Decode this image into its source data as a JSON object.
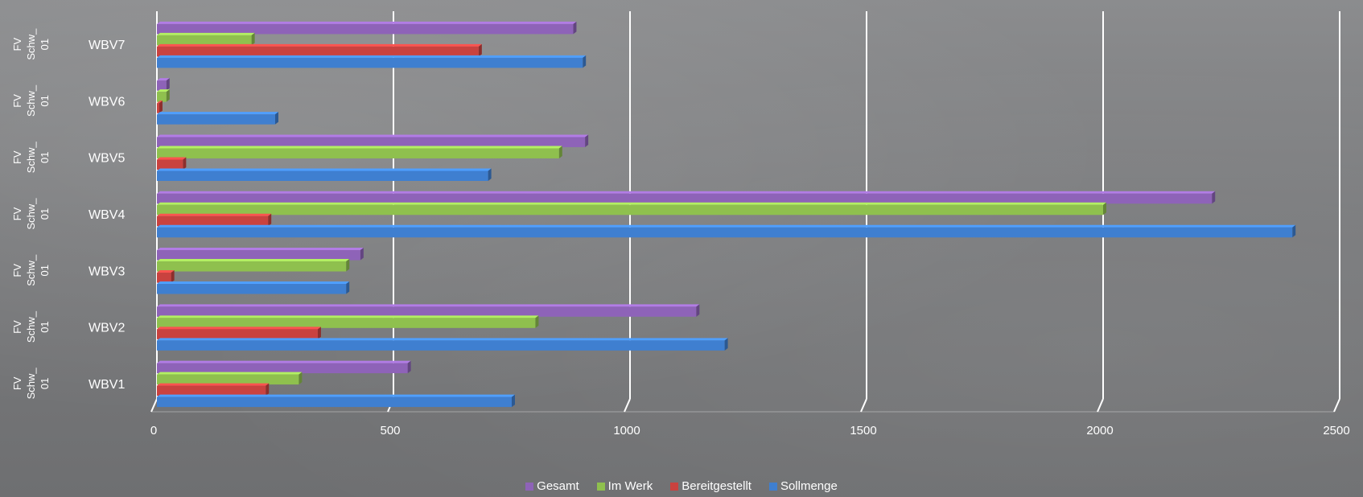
{
  "chart_data": {
    "type": "bar",
    "orientation": "horizontal",
    "categories": [
      {
        "group": "FV Schw_ 01",
        "group_lines": [
          "FV",
          "Schw_",
          "01"
        ],
        "label": "WBV1"
      },
      {
        "group": "FV Schw_ 01",
        "group_lines": [
          "FV",
          "Schw_",
          "01"
        ],
        "label": "WBV2"
      },
      {
        "group": "FV Schw_ 01",
        "group_lines": [
          "FV",
          "Schw_",
          "01"
        ],
        "label": "WBV3"
      },
      {
        "group": "FV Schw_ 01",
        "group_lines": [
          "FV",
          "Schw_",
          "01"
        ],
        "label": "WBV4"
      },
      {
        "group": "FV Schw_ 01",
        "group_lines": [
          "FV",
          "Schw_",
          "01"
        ],
        "label": "WBV5"
      },
      {
        "group": "FV Schw_ 01",
        "group_lines": [
          "FV",
          "Schw_",
          "01"
        ],
        "label": "WBV6"
      },
      {
        "group": "FV Schw_ 01",
        "group_lines": [
          "FV",
          "Schw_",
          "01"
        ],
        "label": "WBV7"
      }
    ],
    "series": [
      {
        "name": "Gesamt",
        "color": "#8e63b8",
        "values": [
          530,
          1140,
          430,
          2230,
          905,
          20,
          880
        ]
      },
      {
        "name": "Im Werk",
        "color": "#8fc04e",
        "values": [
          300,
          800,
          400,
          2000,
          850,
          20,
          200
        ]
      },
      {
        "name": "Bereitgestellt",
        "color": "#c9423f",
        "values": [
          230,
          340,
          30,
          235,
          55,
          5,
          680
        ]
      },
      {
        "name": "Sollmenge",
        "color": "#3f7fd0",
        "values": [
          750,
          1200,
          400,
          2400,
          700,
          250,
          900
        ]
      }
    ],
    "xlim": [
      0,
      2500
    ],
    "xticks": [
      "0",
      "500",
      "1000",
      "1500",
      "2000",
      "2500"
    ],
    "xtick_values": [
      0,
      500,
      1000,
      1500,
      2000,
      2500
    ],
    "grid": true,
    "legend_position": "bottom",
    "title": "",
    "xlabel": "",
    "ylabel": ""
  }
}
